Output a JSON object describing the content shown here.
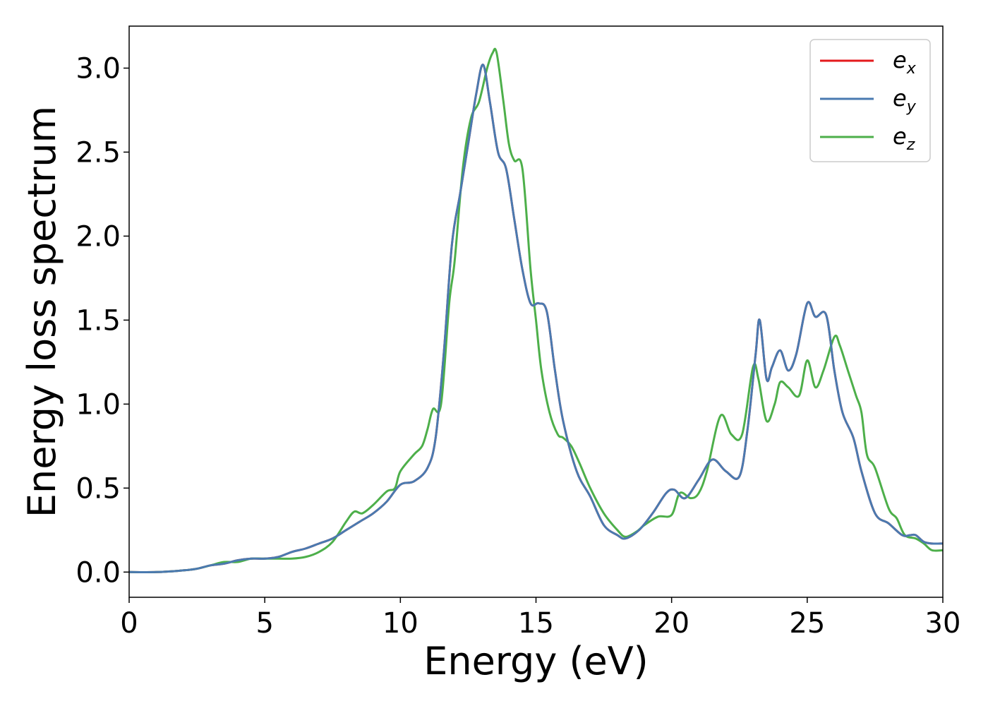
{
  "chart_data": {
    "type": "line",
    "title": "",
    "xlabel": "Energy (eV)",
    "ylabel": "Energy loss spectrum",
    "xlim": [
      0,
      30
    ],
    "ylim": [
      -0.15,
      3.25
    ],
    "xticks": [
      "0",
      "5",
      "10",
      "15",
      "20",
      "25",
      "30"
    ],
    "yticks": [
      "0.0",
      "0.5",
      "1.0",
      "1.5",
      "2.0",
      "2.5",
      "3.0"
    ],
    "xtick_values": [
      0,
      5,
      10,
      15,
      20,
      25,
      30
    ],
    "ytick_values": [
      0.0,
      0.5,
      1.0,
      1.5,
      2.0,
      2.5,
      3.0
    ],
    "grid": false,
    "legend_position": "top-right",
    "series": [
      {
        "name": "e_x",
        "legend_base": "e",
        "legend_sub": "x",
        "color": "#e41a1c",
        "x": [
          0,
          1,
          2,
          2.5,
          3,
          3.5,
          4,
          4.5,
          5,
          5.5,
          6,
          6.5,
          7,
          7.5,
          8,
          8.5,
          9,
          9.5,
          10,
          10.5,
          11,
          11.3,
          11.6,
          11.9,
          12.2,
          12.5,
          12.8,
          13.05,
          13.3,
          13.6,
          13.9,
          14.2,
          14.5,
          14.8,
          15.1,
          15.4,
          15.7,
          16,
          16.5,
          17,
          17.5,
          18,
          18.3,
          18.8,
          19.3,
          19.8,
          20.1,
          20.5,
          21,
          21.5,
          22,
          22.5,
          22.8,
          23.1,
          23.25,
          23.5,
          23.7,
          24,
          24.3,
          24.6,
          25,
          25.3,
          25.7,
          26,
          26.3,
          26.7,
          27,
          27.5,
          28,
          28.5,
          28.8,
          29,
          29.3,
          29.6,
          30
        ],
        "values": [
          0,
          0,
          0.01,
          0.02,
          0.04,
          0.05,
          0.07,
          0.08,
          0.08,
          0.09,
          0.12,
          0.14,
          0.17,
          0.2,
          0.25,
          0.3,
          0.35,
          0.42,
          0.52,
          0.54,
          0.62,
          0.8,
          1.3,
          1.95,
          2.25,
          2.55,
          2.85,
          3.02,
          2.8,
          2.5,
          2.4,
          2.1,
          1.8,
          1.6,
          1.6,
          1.55,
          1.2,
          0.9,
          0.6,
          0.45,
          0.28,
          0.22,
          0.2,
          0.25,
          0.35,
          0.47,
          0.49,
          0.44,
          0.55,
          0.67,
          0.6,
          0.57,
          0.85,
          1.3,
          1.5,
          1.15,
          1.22,
          1.32,
          1.2,
          1.3,
          1.6,
          1.52,
          1.53,
          1.2,
          0.95,
          0.8,
          0.6,
          0.35,
          0.29,
          0.22,
          0.22,
          0.22,
          0.18,
          0.17,
          0.17
        ]
      },
      {
        "name": "e_y",
        "legend_base": "e",
        "legend_sub": "y",
        "color": "#4a7ab0",
        "x": [
          0,
          1,
          2,
          2.5,
          3,
          3.5,
          4,
          4.5,
          5,
          5.5,
          6,
          6.5,
          7,
          7.5,
          8,
          8.5,
          9,
          9.5,
          10,
          10.5,
          11,
          11.3,
          11.6,
          11.9,
          12.2,
          12.5,
          12.8,
          13.05,
          13.3,
          13.6,
          13.9,
          14.2,
          14.5,
          14.8,
          15.1,
          15.4,
          15.7,
          16,
          16.5,
          17,
          17.5,
          18,
          18.3,
          18.8,
          19.3,
          19.8,
          20.1,
          20.5,
          21,
          21.5,
          22,
          22.5,
          22.8,
          23.1,
          23.25,
          23.5,
          23.7,
          24,
          24.3,
          24.6,
          25,
          25.3,
          25.7,
          26,
          26.3,
          26.7,
          27,
          27.5,
          28,
          28.5,
          28.8,
          29,
          29.3,
          29.6,
          30
        ],
        "values": [
          0,
          0,
          0.01,
          0.02,
          0.04,
          0.05,
          0.07,
          0.08,
          0.08,
          0.09,
          0.12,
          0.14,
          0.17,
          0.2,
          0.25,
          0.3,
          0.35,
          0.42,
          0.52,
          0.54,
          0.62,
          0.8,
          1.3,
          1.95,
          2.25,
          2.55,
          2.85,
          3.02,
          2.8,
          2.5,
          2.4,
          2.1,
          1.8,
          1.6,
          1.6,
          1.55,
          1.2,
          0.9,
          0.6,
          0.45,
          0.28,
          0.22,
          0.2,
          0.25,
          0.35,
          0.47,
          0.49,
          0.44,
          0.55,
          0.67,
          0.6,
          0.57,
          0.85,
          1.3,
          1.5,
          1.15,
          1.22,
          1.32,
          1.2,
          1.3,
          1.6,
          1.52,
          1.53,
          1.2,
          0.95,
          0.8,
          0.6,
          0.35,
          0.29,
          0.22,
          0.22,
          0.22,
          0.18,
          0.17,
          0.17
        ]
      },
      {
        "name": "e_z",
        "legend_base": "e",
        "legend_sub": "z",
        "color": "#4daf4a",
        "x": [
          0,
          1,
          2,
          2.5,
          3,
          3.5,
          4,
          4.5,
          5,
          5.5,
          6,
          6.5,
          7,
          7.5,
          8,
          8.3,
          8.6,
          9,
          9.5,
          9.8,
          10,
          10.5,
          10.8,
          11,
          11.2,
          11.5,
          11.8,
          12,
          12.3,
          12.6,
          12.9,
          13.2,
          13.4,
          13.55,
          13.8,
          14,
          14.2,
          14.5,
          14.8,
          15,
          15.2,
          15.5,
          15.8,
          16,
          16.3,
          16.6,
          17,
          17.5,
          18,
          18.3,
          18.7,
          19,
          19.5,
          20,
          20.3,
          20.7,
          21,
          21.3,
          21.8,
          22.2,
          22.6,
          23,
          23.2,
          23.5,
          23.8,
          24,
          24.3,
          24.7,
          25,
          25.3,
          25.6,
          26,
          26.2,
          26.5,
          26.8,
          27,
          27.2,
          27.5,
          28,
          28.3,
          28.6,
          29,
          29.3,
          29.6,
          30
        ],
        "values": [
          0,
          0,
          0.01,
          0.02,
          0.04,
          0.06,
          0.06,
          0.08,
          0.08,
          0.08,
          0.08,
          0.09,
          0.12,
          0.18,
          0.3,
          0.36,
          0.35,
          0.4,
          0.48,
          0.5,
          0.6,
          0.7,
          0.75,
          0.85,
          0.97,
          1.0,
          1.6,
          1.85,
          2.4,
          2.7,
          2.8,
          3.0,
          3.09,
          3.09,
          2.8,
          2.55,
          2.45,
          2.4,
          1.8,
          1.5,
          1.2,
          0.95,
          0.82,
          0.8,
          0.75,
          0.65,
          0.5,
          0.35,
          0.25,
          0.21,
          0.24,
          0.28,
          0.33,
          0.34,
          0.47,
          0.44,
          0.47,
          0.6,
          0.93,
          0.82,
          0.82,
          1.22,
          1.15,
          0.9,
          1.0,
          1.13,
          1.1,
          1.05,
          1.26,
          1.1,
          1.2,
          1.4,
          1.35,
          1.2,
          1.05,
          0.95,
          0.7,
          0.62,
          0.38,
          0.32,
          0.22,
          0.2,
          0.17,
          0.13,
          0.13
        ]
      }
    ]
  }
}
